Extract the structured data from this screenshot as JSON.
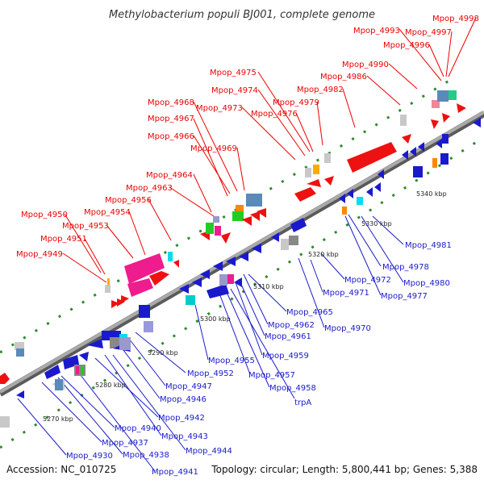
{
  "title": "Methylobacterium populi BJ001, complete genome",
  "footer": {
    "accession": "Accession: NC_010725",
    "summary": "Topology: circular; Length: 5,800,441 bp; Genes: 5,388"
  },
  "colors": {
    "forward_label": "#ee0000",
    "reverse_label": "#1a1acc",
    "backbone": "#888888",
    "tick_dot": "#2e8b2e"
  },
  "kbp_ticks": [
    "5270 kbp",
    "5280 kbp",
    "5290 kbp",
    "5300 kbp",
    "5310 kbp",
    "5320 kbp",
    "5330 kbp",
    "5340 kbp"
  ],
  "forward_labels": [
    "Mpop_4949",
    "Mpop_4951",
    "Mpop_4950",
    "Mpop_4953",
    "Mpop_4954",
    "Mpop_4956",
    "Mpop_4963",
    "Mpop_4964",
    "Mpop_4966",
    "Mpop_4967",
    "Mpop_4968",
    "Mpop_4969",
    "Mpop_4973",
    "Mpop_4974",
    "Mpop_4975",
    "Mpop_4976",
    "Mpop_4979",
    "Mpop_4982",
    "Mpop_4986",
    "Mpop_4990",
    "Mpop_4993",
    "Mpop_4996",
    "Mpop_4997",
    "Mpop_4998"
  ],
  "reverse_labels": [
    "Mpop_4930",
    "Mpop_4937",
    "Mpop_4938",
    "Mpop_4940",
    "Mpop_4941",
    "Mpop_4942",
    "Mpop_4943",
    "Mpop_4944",
    "Mpop_4946",
    "Mpop_4947",
    "Mpop_4952",
    "Mpop_4955",
    "Mpop_4957",
    "Mpop_4958",
    "trpA",
    "Mpop_4959",
    "Mpop_4961",
    "Mpop_4962",
    "Mpop_4965",
    "Mpop_4970",
    "Mpop_4971",
    "Mpop_4972",
    "Mpop_4977",
    "Mpop_4978",
    "Mpop_4980",
    "Mpop_4981"
  ]
}
